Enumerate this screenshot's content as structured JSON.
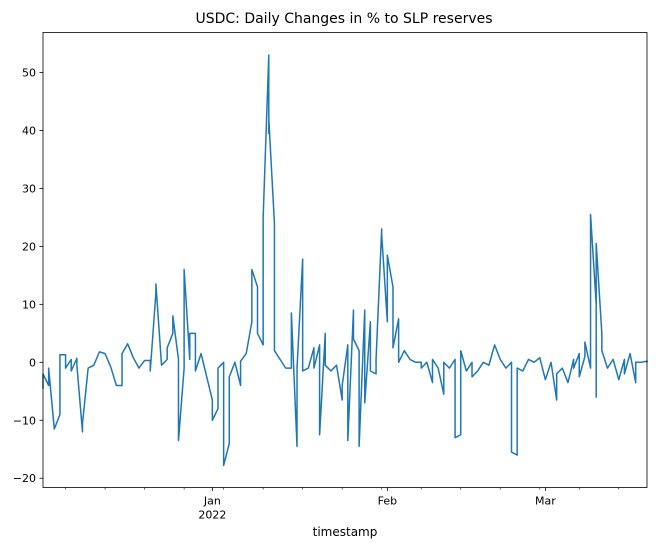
{
  "chart_data": {
    "type": "line",
    "title": "USDC: Daily Changes in % to SLP reserves",
    "xlabel": "timestamp",
    "ylabel": "",
    "ylim": [
      -21.6,
      56.9
    ],
    "yticks": [
      -20,
      -10,
      0,
      10,
      20,
      30,
      40,
      50
    ],
    "xlim": [
      "2021-12-02",
      "2022-03-19"
    ],
    "xticks": [
      {
        "date": "2022-01-01",
        "label": "Jan",
        "sublabel": "2022"
      },
      {
        "date": "2022-02-01",
        "label": "Feb",
        "sublabel": ""
      },
      {
        "date": "2022-03-01",
        "label": "Mar",
        "sublabel": ""
      }
    ],
    "grid": false,
    "series": [
      {
        "color": "#1f77b4",
        "points": [
          [
            "2021-12-02",
            -4.5
          ],
          [
            "2021-12-02",
            -2.0
          ],
          [
            "2021-12-03",
            -4.0
          ],
          [
            "2021-12-03",
            -1.0
          ],
          [
            "2021-12-04",
            -11.5
          ],
          [
            "2021-12-05",
            -9.0
          ],
          [
            "2021-12-05",
            1.3
          ],
          [
            "2021-12-06",
            1.3
          ],
          [
            "2021-12-06",
            -1.0
          ],
          [
            "2021-12-07",
            0.5
          ],
          [
            "2021-12-07",
            -1.5
          ],
          [
            "2021-12-08",
            0.7
          ],
          [
            "2021-12-08",
            -0.5
          ],
          [
            "2021-12-09",
            -12.0
          ],
          [
            "2021-12-09",
            -10.5
          ],
          [
            "2021-12-10",
            -1.0
          ],
          [
            "2021-12-11",
            -0.5
          ],
          [
            "2021-12-12",
            1.8
          ],
          [
            "2021-12-13",
            1.5
          ],
          [
            "2021-12-14",
            -0.8
          ],
          [
            "2021-12-15",
            -4.0
          ],
          [
            "2021-12-16",
            -4.0
          ],
          [
            "2021-12-16",
            1.5
          ],
          [
            "2021-12-17",
            3.2
          ],
          [
            "2021-12-18",
            0.8
          ],
          [
            "2021-12-19",
            -1.0
          ],
          [
            "2021-12-20",
            0.3
          ],
          [
            "2021-12-21",
            0.3
          ],
          [
            "2021-12-21",
            -1.5
          ],
          [
            "2021-12-22",
            12.0
          ],
          [
            "2021-12-22",
            13.5
          ],
          [
            "2021-12-23",
            -0.5
          ],
          [
            "2021-12-24",
            0.5
          ],
          [
            "2021-12-24",
            2.5
          ],
          [
            "2021-12-25",
            5.0
          ],
          [
            "2021-12-25",
            8.0
          ],
          [
            "2021-12-26",
            0.5
          ],
          [
            "2021-12-26",
            -13.5
          ],
          [
            "2021-12-27",
            -1.0
          ],
          [
            "2021-12-27",
            16.0
          ],
          [
            "2021-12-28",
            0.5
          ],
          [
            "2021-12-28",
            5.0
          ],
          [
            "2021-12-29",
            5.0
          ],
          [
            "2021-12-29",
            -1.5
          ],
          [
            "2021-12-30",
            1.5
          ],
          [
            "2021-12-31",
            -2.5
          ],
          [
            "2022-01-01",
            -6.5
          ],
          [
            "2022-01-01",
            -10.0
          ],
          [
            "2022-01-02",
            -8.0
          ],
          [
            "2022-01-02",
            -1.0
          ],
          [
            "2022-01-03",
            0.0
          ],
          [
            "2022-01-03",
            -17.8
          ],
          [
            "2022-01-04",
            -14.0
          ],
          [
            "2022-01-04",
            -2.5
          ],
          [
            "2022-01-05",
            0.0
          ],
          [
            "2022-01-06",
            -4.0
          ],
          [
            "2022-01-06",
            0.2
          ],
          [
            "2022-01-07",
            1.5
          ],
          [
            "2022-01-08",
            7.0
          ],
          [
            "2022-01-08",
            16.0
          ],
          [
            "2022-01-09",
            13.0
          ],
          [
            "2022-01-09",
            5.0
          ],
          [
            "2022-01-10",
            3.0
          ],
          [
            "2022-01-10",
            25.0
          ],
          [
            "2022-01-11",
            53.0
          ],
          [
            "2022-01-11",
            39.5
          ],
          [
            "2022-01-11",
            42.0
          ],
          [
            "2022-01-12",
            24.0
          ],
          [
            "2022-01-12",
            2.0
          ],
          [
            "2022-01-13",
            0.5
          ],
          [
            "2022-01-14",
            -1.0
          ],
          [
            "2022-01-15",
            -1.0
          ],
          [
            "2022-01-15",
            8.5
          ],
          [
            "2022-01-16",
            -14.5
          ],
          [
            "2022-01-16",
            -1.0
          ],
          [
            "2022-01-17",
            17.8
          ],
          [
            "2022-01-17",
            -1.5
          ],
          [
            "2022-01-18",
            -1.0
          ],
          [
            "2022-01-19",
            2.5
          ],
          [
            "2022-01-19",
            -1.0
          ],
          [
            "2022-01-20",
            3.0
          ],
          [
            "2022-01-20",
            -12.5
          ],
          [
            "2022-01-21",
            5.0
          ],
          [
            "2022-01-21",
            -0.5
          ],
          [
            "2022-01-22",
            -1.5
          ],
          [
            "2022-01-23",
            -0.5
          ],
          [
            "2022-01-24",
            -6.5
          ],
          [
            "2022-01-24",
            -4.0
          ],
          [
            "2022-01-25",
            3.0
          ],
          [
            "2022-01-25",
            -13.5
          ],
          [
            "2022-01-26",
            9.0
          ],
          [
            "2022-01-26",
            4.0
          ],
          [
            "2022-01-27",
            2.0
          ],
          [
            "2022-01-27",
            -14.5
          ],
          [
            "2022-01-28",
            9.0
          ],
          [
            "2022-01-28",
            -7.0
          ],
          [
            "2022-01-29",
            7.0
          ],
          [
            "2022-01-29",
            -1.5
          ],
          [
            "2022-01-30",
            -2.0
          ],
          [
            "2022-01-30",
            0.5
          ],
          [
            "2022-01-31",
            23.0
          ],
          [
            "2022-01-31",
            22.0
          ],
          [
            "2022-02-01",
            7.0
          ],
          [
            "2022-02-01",
            18.5
          ],
          [
            "2022-02-02",
            13.0
          ],
          [
            "2022-02-02",
            2.5
          ],
          [
            "2022-02-03",
            7.5
          ],
          [
            "2022-02-03",
            0.0
          ],
          [
            "2022-02-04",
            2.0
          ],
          [
            "2022-02-05",
            0.5
          ],
          [
            "2022-02-06",
            0.0
          ],
          [
            "2022-02-07",
            0.0
          ],
          [
            "2022-02-07",
            -1.0
          ],
          [
            "2022-02-08",
            0.0
          ],
          [
            "2022-02-09",
            -3.5
          ],
          [
            "2022-02-09",
            0.5
          ],
          [
            "2022-02-10",
            -1.0
          ],
          [
            "2022-02-11",
            -5.5
          ],
          [
            "2022-02-11",
            0.0
          ],
          [
            "2022-02-12",
            -1.0
          ],
          [
            "2022-02-13",
            0.5
          ],
          [
            "2022-02-13",
            -13.0
          ],
          [
            "2022-02-14",
            -12.5
          ],
          [
            "2022-02-14",
            2.0
          ],
          [
            "2022-02-15",
            -1.5
          ],
          [
            "2022-02-16",
            0.0
          ],
          [
            "2022-02-16",
            -2.5
          ],
          [
            "2022-02-17",
            -1.5
          ],
          [
            "2022-02-18",
            0.0
          ],
          [
            "2022-02-19",
            -0.5
          ],
          [
            "2022-02-20",
            3.0
          ],
          [
            "2022-02-21",
            0.5
          ],
          [
            "2022-02-22",
            -1.0
          ],
          [
            "2022-02-23",
            0.0
          ],
          [
            "2022-02-23",
            -15.5
          ],
          [
            "2022-02-24",
            -16.0
          ],
          [
            "2022-02-24",
            -1.0
          ],
          [
            "2022-02-25",
            -1.5
          ],
          [
            "2022-02-26",
            0.5
          ],
          [
            "2022-02-27",
            0.0
          ],
          [
            "2022-02-28",
            0.8
          ],
          [
            "2022-03-01",
            -3.0
          ],
          [
            "2022-03-02",
            0.0
          ],
          [
            "2022-03-03",
            -6.5
          ],
          [
            "2022-03-03",
            -2.0
          ],
          [
            "2022-03-04",
            -1.0
          ],
          [
            "2022-03-05",
            -3.5
          ],
          [
            "2022-03-06",
            0.5
          ],
          [
            "2022-03-06",
            -1.0
          ],
          [
            "2022-03-07",
            1.5
          ],
          [
            "2022-03-07",
            -2.5
          ],
          [
            "2022-03-08",
            1.0
          ],
          [
            "2022-03-08",
            3.5
          ],
          [
            "2022-03-09",
            -1.0
          ],
          [
            "2022-03-09",
            25.5
          ],
          [
            "2022-03-10",
            10.0
          ],
          [
            "2022-03-10",
            -6.0
          ],
          [
            "2022-03-10",
            20.5
          ],
          [
            "2022-03-11",
            5.0
          ],
          [
            "2022-03-11",
            2.0
          ],
          [
            "2022-03-12",
            -1.0
          ],
          [
            "2022-03-13",
            0.5
          ],
          [
            "2022-03-14",
            -3.0
          ],
          [
            "2022-03-15",
            0.5
          ],
          [
            "2022-03-15",
            -2.0
          ],
          [
            "2022-03-16",
            1.5
          ],
          [
            "2022-03-17",
            -3.5
          ],
          [
            "2022-03-17",
            0.0
          ],
          [
            "2022-03-18",
            0.0
          ],
          [
            "2022-03-19",
            0.2
          ],
          [
            "2022-03-19",
            0.0
          ]
        ]
      }
    ]
  }
}
